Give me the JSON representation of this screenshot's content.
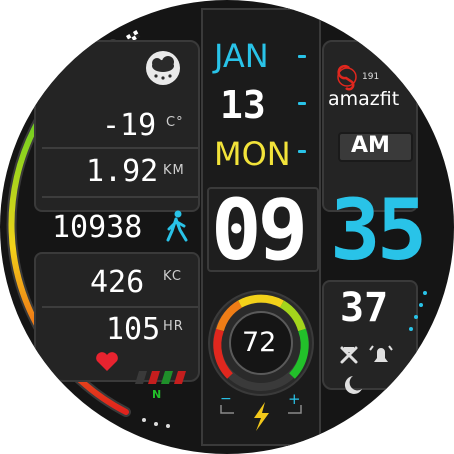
{
  "weather": {
    "icon": "snow-cloud-icon",
    "temperature": "-19",
    "temperature_unit": "C°"
  },
  "distance": {
    "value": "1.92",
    "unit": "KM"
  },
  "steps": {
    "value": "10938",
    "icon": "walking-person-icon"
  },
  "calories": {
    "value": "426",
    "unit": "KC"
  },
  "heart_rate": {
    "value": "105",
    "unit": "HR",
    "icon": "heart-icon"
  },
  "date": {
    "month": "JAN",
    "day": "13",
    "weekday": "MON"
  },
  "time": {
    "hour": "09",
    "minute": "35",
    "seconds": "37",
    "period": "AM"
  },
  "battery": {
    "value": "72",
    "minus": "−",
    "plus": "+",
    "icon": "lightning-bolt-icon"
  },
  "brand": {
    "logo_number": "191",
    "name": "amazfit"
  },
  "status": {
    "network_label": "N",
    "icons": [
      "flag-icon",
      "alarm-bell-icon",
      "moon-icon"
    ]
  },
  "colors": {
    "accent_cyan": "#29c3e8",
    "weekday_yellow": "#f2e33a",
    "arc_green": "#22c02a",
    "arc_red": "#e0271e"
  }
}
